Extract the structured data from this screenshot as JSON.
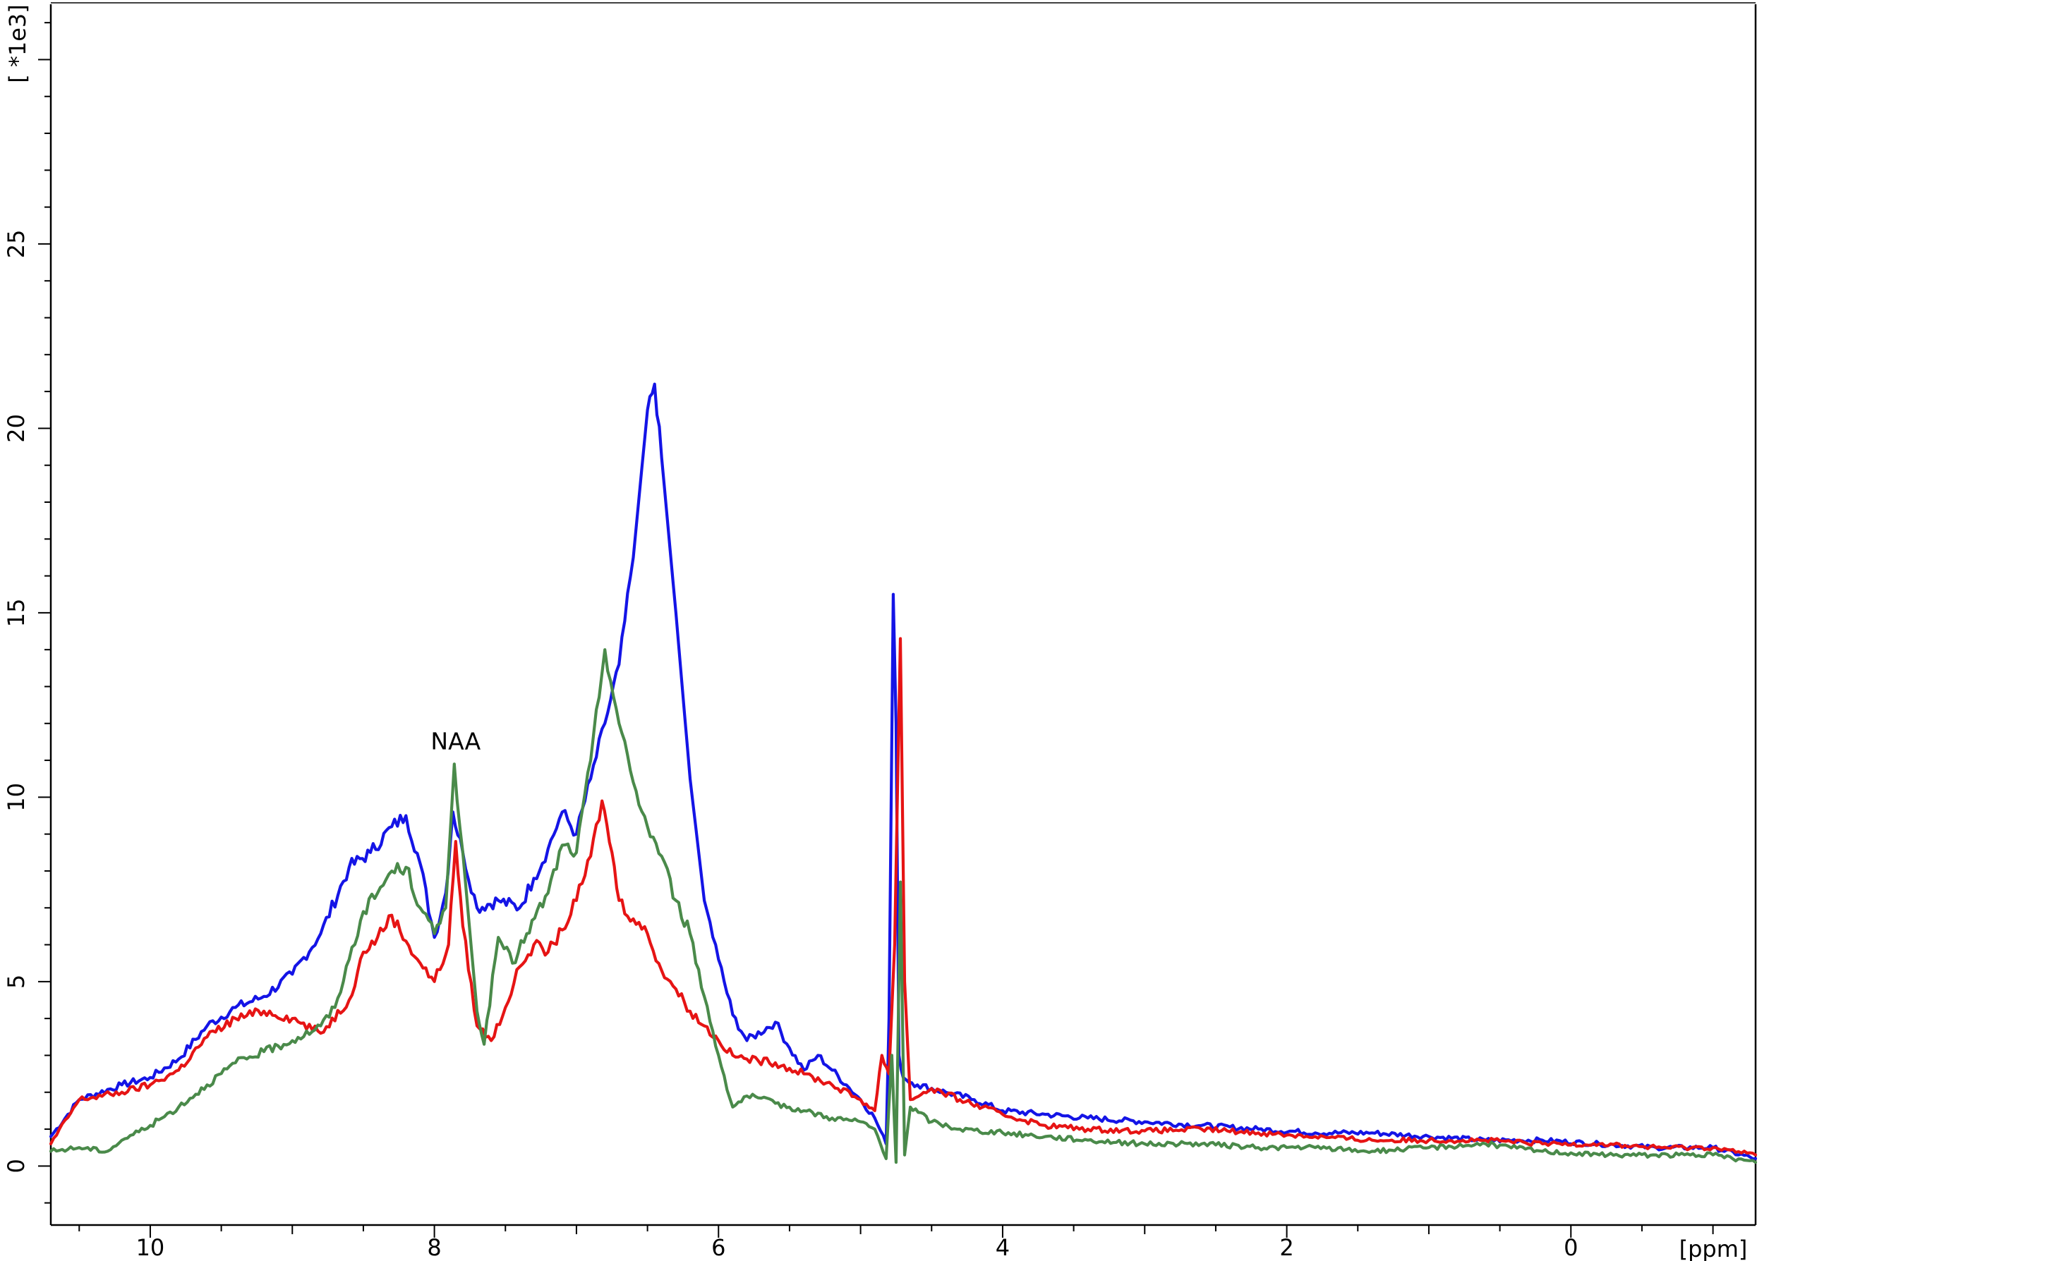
{
  "chart_data": {
    "type": "line",
    "xlabel": "[ppm]",
    "ylabel": "[ *1e3]",
    "xlim": [
      10.7,
      -1.3
    ],
    "ylim": [
      -1.6,
      31.5
    ],
    "x_reversed": true,
    "x_ticks": [
      10,
      8,
      6,
      4,
      2,
      0
    ],
    "y_ticks": [
      0,
      5,
      10,
      15,
      20,
      25
    ],
    "grid": false,
    "legend": "none",
    "annotations": [
      {
        "text": "NAA",
        "x": 7.85,
        "y": 11.3
      }
    ],
    "series": [
      {
        "color": "#1414e6",
        "points": [
          [
            10.7,
            0.8
          ],
          [
            10.5,
            1.8
          ],
          [
            10.2,
            2.2
          ],
          [
            10.0,
            2.4
          ],
          [
            9.8,
            2.9
          ],
          [
            9.6,
            3.8
          ],
          [
            9.4,
            4.3
          ],
          [
            9.2,
            4.6
          ],
          [
            9.0,
            5.2
          ],
          [
            8.8,
            6.3
          ],
          [
            8.6,
            8.1
          ],
          [
            8.45,
            8.5
          ],
          [
            8.3,
            9.2
          ],
          [
            8.2,
            9.5
          ],
          [
            8.1,
            8.2
          ],
          [
            8.0,
            6.2
          ],
          [
            7.92,
            7.4
          ],
          [
            7.87,
            9.6
          ],
          [
            7.8,
            8.5
          ],
          [
            7.7,
            7.0
          ],
          [
            7.55,
            7.2
          ],
          [
            7.4,
            7.0
          ],
          [
            7.3,
            7.8
          ],
          [
            7.2,
            8.6
          ],
          [
            7.1,
            9.6
          ],
          [
            7.0,
            9.0
          ],
          [
            6.9,
            10.5
          ],
          [
            6.8,
            12.0
          ],
          [
            6.7,
            13.6
          ],
          [
            6.6,
            16.5
          ],
          [
            6.5,
            20.5
          ],
          [
            6.45,
            21.2
          ],
          [
            6.4,
            19.2
          ],
          [
            6.3,
            15.0
          ],
          [
            6.2,
            10.5
          ],
          [
            6.1,
            7.2
          ],
          [
            6.0,
            5.6
          ],
          [
            5.9,
            4.1
          ],
          [
            5.8,
            3.4
          ],
          [
            5.6,
            3.9
          ],
          [
            5.5,
            3.2
          ],
          [
            5.4,
            2.6
          ],
          [
            5.3,
            3.0
          ],
          [
            5.2,
            2.6
          ],
          [
            5.1,
            2.2
          ],
          [
            5.0,
            1.8
          ],
          [
            4.9,
            1.3
          ],
          [
            4.82,
            0.6
          ],
          [
            4.8,
            4.0
          ],
          [
            4.77,
            15.5
          ],
          [
            4.75,
            12.0
          ],
          [
            4.73,
            3.0
          ],
          [
            4.7,
            2.4
          ],
          [
            4.6,
            2.2
          ],
          [
            4.4,
            2.0
          ],
          [
            4.2,
            1.8
          ],
          [
            4.0,
            1.5
          ],
          [
            3.7,
            1.4
          ],
          [
            3.4,
            1.3
          ],
          [
            3.0,
            1.2
          ],
          [
            2.6,
            1.1
          ],
          [
            2.2,
            1.0
          ],
          [
            1.8,
            0.9
          ],
          [
            1.4,
            0.9
          ],
          [
            1.0,
            0.8
          ],
          [
            0.6,
            0.7
          ],
          [
            0.2,
            0.7
          ],
          [
            -0.2,
            0.6
          ],
          [
            -0.6,
            0.5
          ],
          [
            -1.0,
            0.5
          ],
          [
            -1.3,
            0.2
          ]
        ]
      },
      {
        "color": "#e61414",
        "points": [
          [
            10.7,
            0.6
          ],
          [
            10.5,
            1.8
          ],
          [
            10.2,
            2.0
          ],
          [
            10.0,
            2.2
          ],
          [
            9.8,
            2.6
          ],
          [
            9.6,
            3.5
          ],
          [
            9.4,
            4.0
          ],
          [
            9.2,
            4.2
          ],
          [
            9.0,
            4.0
          ],
          [
            8.8,
            3.6
          ],
          [
            8.6,
            4.5
          ],
          [
            8.5,
            5.8
          ],
          [
            8.4,
            6.2
          ],
          [
            8.3,
            6.8
          ],
          [
            8.2,
            6.1
          ],
          [
            8.1,
            5.5
          ],
          [
            8.0,
            5.0
          ],
          [
            7.9,
            6.0
          ],
          [
            7.85,
            8.8
          ],
          [
            7.8,
            6.5
          ],
          [
            7.7,
            3.8
          ],
          [
            7.6,
            3.4
          ],
          [
            7.5,
            4.3
          ],
          [
            7.4,
            5.4
          ],
          [
            7.3,
            6.0
          ],
          [
            7.2,
            5.8
          ],
          [
            7.1,
            6.4
          ],
          [
            7.0,
            7.2
          ],
          [
            6.9,
            8.4
          ],
          [
            6.82,
            9.9
          ],
          [
            6.75,
            8.5
          ],
          [
            6.7,
            7.2
          ],
          [
            6.6,
            6.7
          ],
          [
            6.5,
            6.3
          ],
          [
            6.4,
            5.3
          ],
          [
            6.3,
            4.8
          ],
          [
            6.2,
            4.2
          ],
          [
            6.1,
            3.8
          ],
          [
            6.0,
            3.4
          ],
          [
            5.9,
            3.0
          ],
          [
            5.8,
            2.9
          ],
          [
            5.6,
            2.8
          ],
          [
            5.4,
            2.5
          ],
          [
            5.2,
            2.2
          ],
          [
            5.0,
            1.8
          ],
          [
            4.9,
            1.5
          ],
          [
            4.85,
            3.0
          ],
          [
            4.8,
            2.5
          ],
          [
            4.76,
            6.0
          ],
          [
            4.72,
            14.3
          ],
          [
            4.69,
            5.0
          ],
          [
            4.65,
            1.8
          ],
          [
            4.5,
            2.1
          ],
          [
            4.3,
            1.8
          ],
          [
            4.0,
            1.4
          ],
          [
            3.7,
            1.1
          ],
          [
            3.4,
            1.0
          ],
          [
            3.0,
            0.95
          ],
          [
            2.6,
            1.0
          ],
          [
            2.2,
            0.9
          ],
          [
            1.8,
            0.8
          ],
          [
            1.4,
            0.7
          ],
          [
            1.0,
            0.7
          ],
          [
            0.6,
            0.7
          ],
          [
            0.2,
            0.6
          ],
          [
            -0.2,
            0.6
          ],
          [
            -0.6,
            0.5
          ],
          [
            -1.0,
            0.5
          ],
          [
            -1.3,
            0.3
          ]
        ]
      },
      {
        "color": "#4a8a4a",
        "points": [
          [
            10.7,
            0.4
          ],
          [
            10.5,
            0.5
          ],
          [
            10.3,
            0.4
          ],
          [
            10.2,
            0.7
          ],
          [
            10.0,
            1.1
          ],
          [
            9.8,
            1.6
          ],
          [
            9.6,
            2.2
          ],
          [
            9.4,
            2.8
          ],
          [
            9.2,
            3.1
          ],
          [
            9.0,
            3.4
          ],
          [
            8.8,
            3.8
          ],
          [
            8.7,
            4.3
          ],
          [
            8.6,
            5.6
          ],
          [
            8.5,
            6.9
          ],
          [
            8.4,
            7.4
          ],
          [
            8.3,
            8.0
          ],
          [
            8.2,
            8.1
          ],
          [
            8.1,
            7.0
          ],
          [
            8.0,
            6.3
          ],
          [
            7.92,
            7.0
          ],
          [
            7.86,
            10.9
          ],
          [
            7.8,
            8.5
          ],
          [
            7.7,
            4.2
          ],
          [
            7.65,
            3.3
          ],
          [
            7.55,
            6.2
          ],
          [
            7.45,
            5.5
          ],
          [
            7.35,
            6.3
          ],
          [
            7.2,
            7.4
          ],
          [
            7.1,
            8.7
          ],
          [
            7.0,
            8.5
          ],
          [
            6.9,
            11.0
          ],
          [
            6.8,
            14.0
          ],
          [
            6.7,
            12.0
          ],
          [
            6.6,
            10.4
          ],
          [
            6.5,
            9.2
          ],
          [
            6.4,
            8.4
          ],
          [
            6.3,
            7.2
          ],
          [
            6.2,
            6.3
          ],
          [
            6.1,
            4.6
          ],
          [
            6.0,
            3.0
          ],
          [
            5.9,
            1.6
          ],
          [
            5.8,
            1.9
          ],
          [
            5.6,
            1.7
          ],
          [
            5.4,
            1.5
          ],
          [
            5.2,
            1.3
          ],
          [
            5.0,
            1.2
          ],
          [
            4.9,
            1.0
          ],
          [
            4.82,
            0.2
          ],
          [
            4.78,
            3.0
          ],
          [
            4.75,
            0.1
          ],
          [
            4.72,
            7.7
          ],
          [
            4.69,
            0.3
          ],
          [
            4.65,
            1.6
          ],
          [
            4.5,
            1.2
          ],
          [
            4.3,
            1.0
          ],
          [
            4.0,
            0.9
          ],
          [
            3.7,
            0.8
          ],
          [
            3.4,
            0.7
          ],
          [
            3.0,
            0.6
          ],
          [
            2.6,
            0.6
          ],
          [
            2.2,
            0.5
          ],
          [
            1.8,
            0.5
          ],
          [
            1.4,
            0.4
          ],
          [
            1.0,
            0.5
          ],
          [
            0.6,
            0.6
          ],
          [
            0.2,
            0.4
          ],
          [
            -0.2,
            0.3
          ],
          [
            -0.6,
            0.3
          ],
          [
            -1.0,
            0.3
          ],
          [
            -1.3,
            0.1
          ]
        ]
      }
    ]
  }
}
